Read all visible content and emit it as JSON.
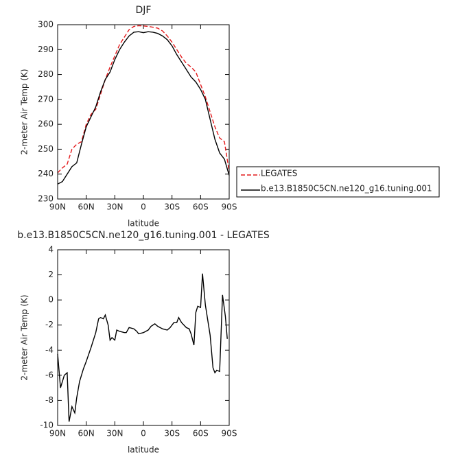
{
  "chart_data": [
    {
      "type": "line",
      "title": "DJF",
      "xlabel": "latitude",
      "ylabel": "2-meter Air Temp (K)",
      "x": [
        90,
        85,
        80,
        75,
        70,
        65,
        60,
        55,
        50,
        45,
        40,
        35,
        30,
        25,
        20,
        15,
        10,
        5,
        0,
        -5,
        -10,
        -15,
        -20,
        -25,
        -30,
        -35,
        -40,
        -45,
        -50,
        -55,
        -60,
        -65,
        -70,
        -75,
        -80,
        -85,
        -90
      ],
      "xlim": [
        90,
        -90
      ],
      "xticks": [
        {
          "value": 90,
          "label": "90N"
        },
        {
          "value": 60,
          "label": "60N"
        },
        {
          "value": 30,
          "label": "30N"
        },
        0,
        {
          "value": -30,
          "label": "30S"
        },
        {
          "value": -60,
          "label": "60S"
        },
        {
          "value": -90,
          "label": "90S"
        }
      ],
      "ylim": [
        230,
        300
      ],
      "yticks": [
        230,
        240,
        250,
        260,
        270,
        280,
        290,
        300
      ],
      "legend": "right",
      "series": [
        {
          "name": "LEGATES",
          "color": "#e41a1c",
          "line_style": "dashed",
          "values": [
            240.5,
            242.5,
            244,
            250,
            252,
            253,
            260,
            264,
            266,
            272,
            278,
            283,
            287.5,
            292,
            295,
            298,
            299.3,
            299.6,
            299.5,
            299.3,
            299,
            298.6,
            297.5,
            295.5,
            293,
            290,
            287,
            284.5,
            283,
            281,
            276,
            271,
            265,
            259,
            254.5,
            253,
            241
          ]
        },
        {
          "name": "b.e13.B1850C5CN.ne120_g16.tuning.001",
          "color": "#000000",
          "line_style": "solid",
          "values": [
            236,
            237,
            240,
            243,
            244.5,
            252,
            259,
            263,
            267,
            273,
            278,
            281,
            286,
            290,
            293,
            295.5,
            297,
            297.2,
            296.8,
            297.2,
            297,
            296.5,
            295.5,
            294,
            291.5,
            288,
            285,
            282,
            279,
            277,
            274,
            270,
            262,
            254,
            248.5,
            246,
            239.5
          ]
        }
      ]
    },
    {
      "type": "line",
      "title": "b.e13.B1850C5CN.ne120_g16.tuning.001 - LEGATES",
      "xlabel": "latitude",
      "ylabel": "2-meter Air Temp (K)",
      "x": [
        90,
        87,
        83,
        80,
        78,
        75,
        72,
        70,
        67,
        63,
        60,
        55,
        50,
        47,
        45,
        42,
        40,
        37,
        35,
        33,
        30,
        28,
        25,
        20,
        18,
        15,
        10,
        7,
        5,
        0,
        -5,
        -8,
        -12,
        -15,
        -20,
        -25,
        -28,
        -32,
        -35,
        -37,
        -40,
        -45,
        -48,
        -50,
        -53,
        -55,
        -57,
        -60,
        -62,
        -65,
        -70,
        -73,
        -75,
        -77,
        -80,
        -83,
        -86,
        -88
      ],
      "xlim": [
        90,
        -90
      ],
      "xticks": [
        {
          "value": 90,
          "label": "90N"
        },
        {
          "value": 60,
          "label": "60N"
        },
        {
          "value": 30,
          "label": "30N"
        },
        0,
        {
          "value": -30,
          "label": "30S"
        },
        {
          "value": -60,
          "label": "60S"
        },
        {
          "value": -90,
          "label": "90S"
        }
      ],
      "ylim": [
        -10,
        4
      ],
      "yticks": [
        -10,
        -8,
        -6,
        -4,
        -2,
        0,
        2,
        4
      ],
      "series": [
        {
          "color": "#000000",
          "line_style": "solid",
          "values": [
            -4.3,
            -7,
            -6,
            -5.8,
            -9.7,
            -8.5,
            -9,
            -7.8,
            -6.5,
            -5.5,
            -4.9,
            -3.8,
            -2.6,
            -1.5,
            -1.4,
            -1.5,
            -1.2,
            -2,
            -3.2,
            -3,
            -3.2,
            -2.4,
            -2.5,
            -2.6,
            -2.6,
            -2.2,
            -2.3,
            -2.5,
            -2.7,
            -2.6,
            -2.4,
            -2.1,
            -1.9,
            -2.1,
            -2.3,
            -2.4,
            -2.2,
            -1.8,
            -1.8,
            -1.4,
            -1.8,
            -2.2,
            -2.3,
            -2.7,
            -3.6,
            -1,
            -0.5,
            -0.6,
            2.1,
            -0.4,
            -2.8,
            -5.4,
            -5.8,
            -5.6,
            -5.7,
            0.4,
            -1.3,
            -3.1
          ]
        }
      ]
    }
  ]
}
